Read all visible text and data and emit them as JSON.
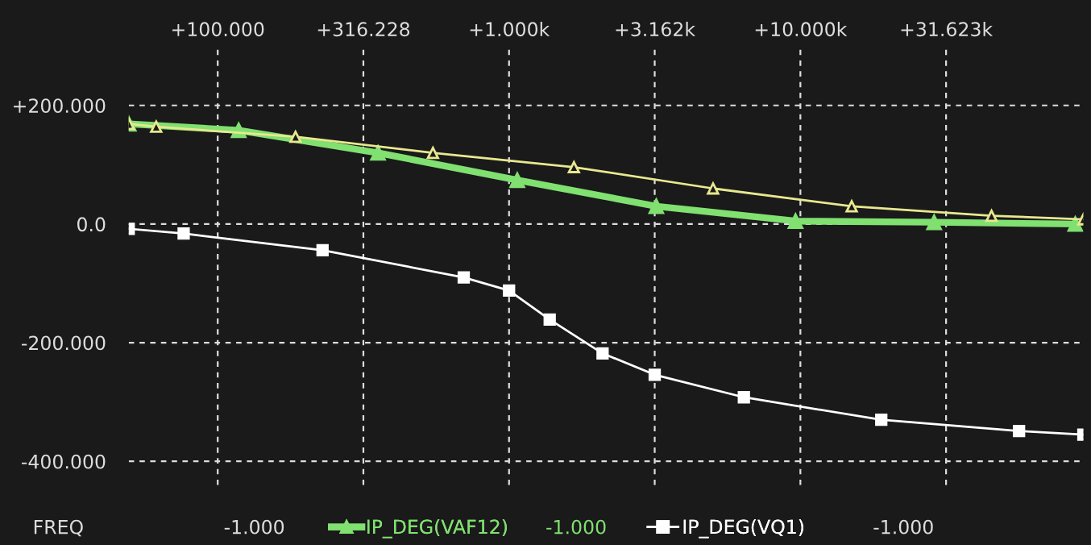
{
  "chart_data": {
    "type": "line",
    "series": [
      {
        "color": "#e8e890",
        "marker": "triangle",
        "x": [
          49.5,
          61.5,
          185,
          548,
          1670,
          5015,
          15000,
          45300,
          93600
        ],
        "values": [
          169,
          164,
          147,
          120,
          96,
          60,
          30,
          14,
          8
        ]
      },
      {
        "name": "IP_DEG(VAF12)",
        "color": "#80e070",
        "marker": "triangle",
        "x": [
          49.5,
          118,
          355,
          1067,
          3202,
          9622,
          28770,
          87800
        ],
        "values": [
          169,
          158,
          120,
          74,
          30,
          5,
          3,
          0
        ]
      },
      {
        "name": "IP_DEG(VQ1)",
        "color": "#ffffff",
        "marker": "square",
        "x": [
          49.5,
          76.4,
          229,
          699,
          1000,
          1379,
          2094,
          3162,
          6397,
          18950,
          56300,
          93600
        ],
        "values": [
          -8,
          -16,
          -44,
          -90,
          -112,
          -161,
          -218,
          -254,
          -292,
          -330,
          -349,
          -355
        ]
      }
    ],
    "log": "x",
    "xlim": [
      49.5,
      93600
    ],
    "ylim": [
      -440,
      295
    ],
    "xticks": [
      {
        "value": 100,
        "label": "+100.000"
      },
      {
        "value": 316.228,
        "label": "+316.228"
      },
      {
        "value": 1000,
        "label": "+1.000k"
      },
      {
        "value": 3162,
        "label": "+3.162k"
      },
      {
        "value": 10000,
        "label": "+10.000k"
      },
      {
        "value": 31623,
        "label": "+31.623k"
      }
    ],
    "yticks": [
      {
        "value": 200,
        "label": "+200.000"
      },
      {
        "value": 0,
        "label": "0.0"
      },
      {
        "value": -200,
        "label": "-200.000"
      },
      {
        "value": -400,
        "label": "-400.000"
      }
    ],
    "grid": true,
    "legend": "bottom",
    "line_style": "solid",
    "annotations": [
      "FREQ",
      "-1.000",
      "-1.000",
      "-1.000"
    ]
  }
}
